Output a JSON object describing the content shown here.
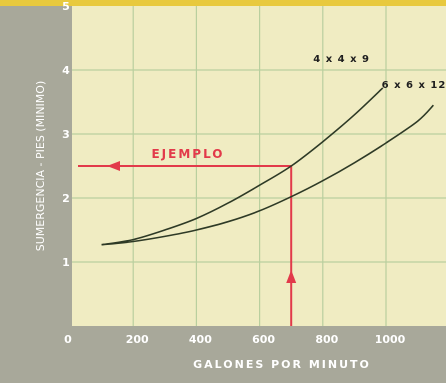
{
  "chart_data": {
    "type": "line",
    "title": "",
    "xlabel": "GALONES POR MINUTO",
    "ylabel": "SUMERGENCIA - PIES (MINIMO)",
    "xlim": [
      0,
      1150
    ],
    "ylim": [
      0,
      5
    ],
    "x_ticks": [
      "0",
      "200",
      "400",
      "600",
      "800",
      "1000"
    ],
    "y_ticks": [
      "0",
      "1",
      "2",
      "3",
      "4",
      "5"
    ],
    "x_tick_values": [
      0,
      200,
      400,
      600,
      800,
      1000
    ],
    "y_tick_values": [
      0,
      1,
      2,
      3,
      4,
      5
    ],
    "grid": true,
    "series": [
      {
        "name": "4 x 4 x 9",
        "x": [
          100,
          200,
          300,
          400,
          500,
          600,
          700,
          800,
          900,
          990
        ],
        "y": [
          1.27,
          1.35,
          1.5,
          1.68,
          1.92,
          2.2,
          2.5,
          2.88,
          3.3,
          3.72
        ]
      },
      {
        "name": "6 x 6 x 12",
        "x": [
          100,
          200,
          300,
          400,
          500,
          600,
          700,
          800,
          900,
          1000,
          1100,
          1150
        ],
        "y": [
          1.27,
          1.32,
          1.4,
          1.5,
          1.63,
          1.8,
          2.02,
          2.27,
          2.55,
          2.86,
          3.2,
          3.45
        ]
      }
    ],
    "annotations": [
      {
        "text": "EJEMPLO",
        "x": 700,
        "y": 2.5
      }
    ]
  },
  "colors": {
    "frame": "#a8a89a",
    "top_strip": "#e8c93e",
    "plot_background": "#f0ecc2",
    "grid": "#b9cf9e",
    "curve": "#2e3a26",
    "example": "#e23a4a",
    "tick_text": "#ffffff"
  }
}
